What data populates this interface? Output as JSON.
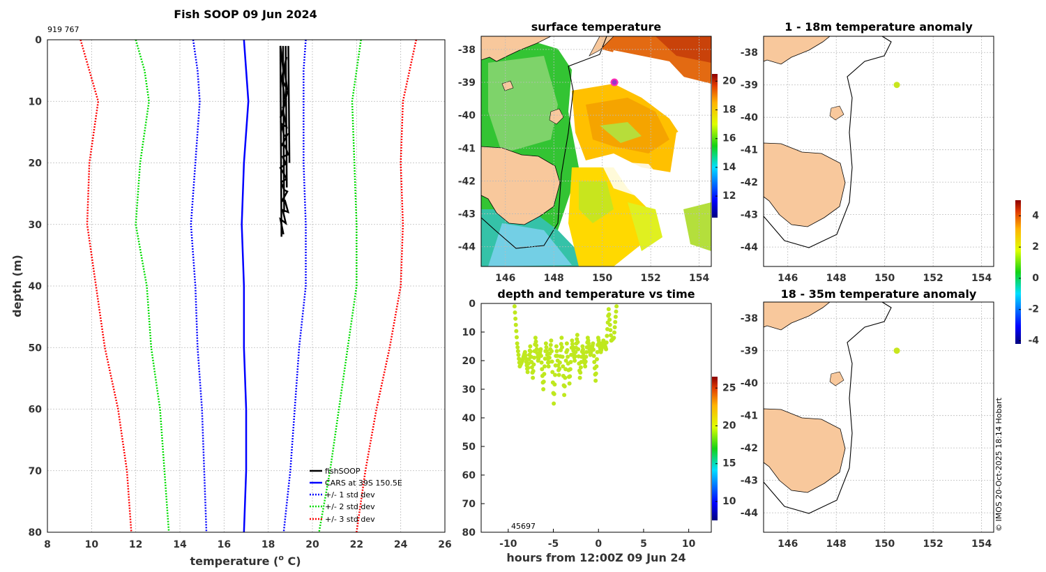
{
  "figure": {
    "main_title": "Fish SOOP 09 Jun 2024",
    "id_label": "919 767",
    "copyright": "© IMOS 20-Oct-2025 18:14 Hobart",
    "land_color": "#f8c89c"
  },
  "chart_data": [
    {
      "id": "profile",
      "type": "line",
      "title": "",
      "xlabel": "temperature (° C)",
      "xlabel_main": "temperature (",
      "xlabel_sup": "o",
      "xlabel_end": " C)",
      "ylabel": "depth (m)",
      "xlim": [
        8,
        26
      ],
      "ylim": [
        0,
        80
      ],
      "xticks": [
        "8",
        "10",
        "12",
        "14",
        "16",
        "18",
        "20",
        "22",
        "24",
        "26"
      ],
      "yticks": [
        "0",
        "10",
        "20",
        "30",
        "40",
        "50",
        "60",
        "70",
        "80"
      ],
      "depths": [
        0,
        5,
        10,
        20,
        30,
        40,
        50,
        60,
        70,
        80
      ],
      "series": [
        {
          "name": "CARS at 39S 150.5E",
          "color": "#0000ff",
          "style": "solid",
          "values": [
            16.9,
            17.0,
            17.1,
            16.9,
            16.8,
            16.9,
            16.9,
            17.0,
            17.0,
            16.9
          ]
        },
        {
          "name": "+/- 1 std dev",
          "color": "#0000ff",
          "style": "dot",
          "values": [
            14.6,
            14.8,
            14.9,
            14.7,
            14.5,
            14.7,
            14.8,
            15.0,
            15.1,
            15.2
          ]
        },
        {
          "name": "+/- 1 std dev upper",
          "color": "#0000ff",
          "style": "dot",
          "values": [
            19.7,
            19.6,
            19.6,
            19.6,
            19.7,
            19.7,
            19.4,
            19.2,
            19.0,
            18.7
          ]
        },
        {
          "name": "+/- 2 std dev",
          "color": "#00dd00",
          "style": "dot",
          "values": [
            12.0,
            12.4,
            12.6,
            12.2,
            12.0,
            12.5,
            12.7,
            13.1,
            13.3,
            13.5
          ]
        },
        {
          "name": "+/- 2 std dev upper",
          "color": "#00dd00",
          "style": "dot",
          "values": [
            22.2,
            22.0,
            21.8,
            21.9,
            22.0,
            22.0,
            21.6,
            21.2,
            20.8,
            20.3
          ]
        },
        {
          "name": "+/- 3 std dev",
          "color": "#ff0000",
          "style": "dot",
          "values": [
            9.5,
            9.9,
            10.3,
            9.9,
            9.8,
            10.2,
            10.6,
            11.2,
            11.6,
            11.8
          ]
        },
        {
          "name": "+/- 3 std dev upper",
          "color": "#ff0000",
          "style": "dot",
          "values": [
            24.7,
            24.4,
            24.1,
            24.0,
            24.1,
            24.0,
            23.5,
            22.9,
            22.4,
            22.0
          ]
        }
      ],
      "fishsoop": {
        "name": "fishSOOP",
        "color": "#000000",
        "temp_range": [
          18.4,
          18.9
        ],
        "depth_range": [
          1,
          35
        ]
      },
      "legend": [
        "fishSOOP",
        "CARS at 39S 150.5E",
        "+/- 1 std dev",
        "+/- 2 std dev",
        "+/- 3 std dev"
      ],
      "legend_loc": "bottom-right"
    },
    {
      "id": "sst",
      "type": "heatmap",
      "title": "surface temperature",
      "xticks": [
        "146",
        "148",
        "150",
        "152",
        "154"
      ],
      "yticks": [
        "-38",
        "-39",
        "-40",
        "-41",
        "-42",
        "-43",
        "-44"
      ],
      "xlim": [
        145,
        154.5
      ],
      "ylim": [
        -44.6,
        -37.6
      ],
      "colorbar": {
        "min": 10.5,
        "max": 20.5,
        "ticks": [
          "12",
          "14",
          "16",
          "18",
          "20"
        ]
      },
      "station": {
        "lon": 150.5,
        "lat": -39.0
      }
    },
    {
      "id": "anom1",
      "type": "heatmap",
      "title": "1 - 18m temperature anomaly",
      "xticks": [
        "146",
        "148",
        "150",
        "152",
        "154"
      ],
      "yticks": [
        "-38",
        "-39",
        "-40",
        "-41",
        "-42",
        "-43",
        "-44"
      ],
      "xlim": [
        145,
        154.5
      ],
      "ylim": [
        -44.6,
        -37.5
      ],
      "station": {
        "lon": 150.5,
        "lat": -39.0,
        "color": "#c8e61e"
      }
    },
    {
      "id": "anom2",
      "type": "heatmap",
      "title": "18 - 35m temperature anomaly",
      "xticks": [
        "146",
        "148",
        "150",
        "152",
        "154"
      ],
      "yticks": [
        "-38",
        "-39",
        "-40",
        "-41",
        "-42",
        "-43",
        "-44"
      ],
      "xlim": [
        145,
        154.5
      ],
      "ylim": [
        -44.6,
        -37.5
      ],
      "station": {
        "lon": 150.5,
        "lat": -39.0,
        "color": "#c8e61e"
      }
    },
    {
      "id": "anom_colorbar",
      "type": "heatmap",
      "colorbar": {
        "min": -4.2,
        "max": 5.0,
        "ticks": [
          "4",
          "2",
          "0",
          "-2",
          "-4"
        ]
      }
    },
    {
      "id": "timeseries",
      "type": "scatter",
      "title": "depth and temperature vs time",
      "xlabel": "hours from 12:00Z 09 Jun 24",
      "xlim": [
        -13,
        12.5
      ],
      "ylim": [
        0,
        80
      ],
      "xticks": [
        "-10",
        "-5",
        "0",
        "5",
        "10"
      ],
      "yticks": [
        "0",
        "10",
        "20",
        "30",
        "40",
        "50",
        "60",
        "70",
        "80"
      ],
      "annotation": "45697",
      "colorbar": {
        "min": 7.5,
        "max": 26.5,
        "ticks": [
          "25",
          "20",
          "15",
          "10"
        ]
      },
      "depths": [
        1,
        14,
        22,
        20,
        17,
        24,
        15,
        26,
        12,
        20,
        16,
        30,
        14,
        22,
        13,
        35,
        15,
        25,
        12,
        32,
        14,
        28,
        13,
        20,
        11,
        26,
        15,
        22,
        12,
        18,
        14,
        27,
        12,
        17,
        13,
        16,
        2,
        13,
        12,
        1
      ],
      "time_range": [
        -9.3,
        2.0
      ],
      "temp": 19
    }
  ]
}
